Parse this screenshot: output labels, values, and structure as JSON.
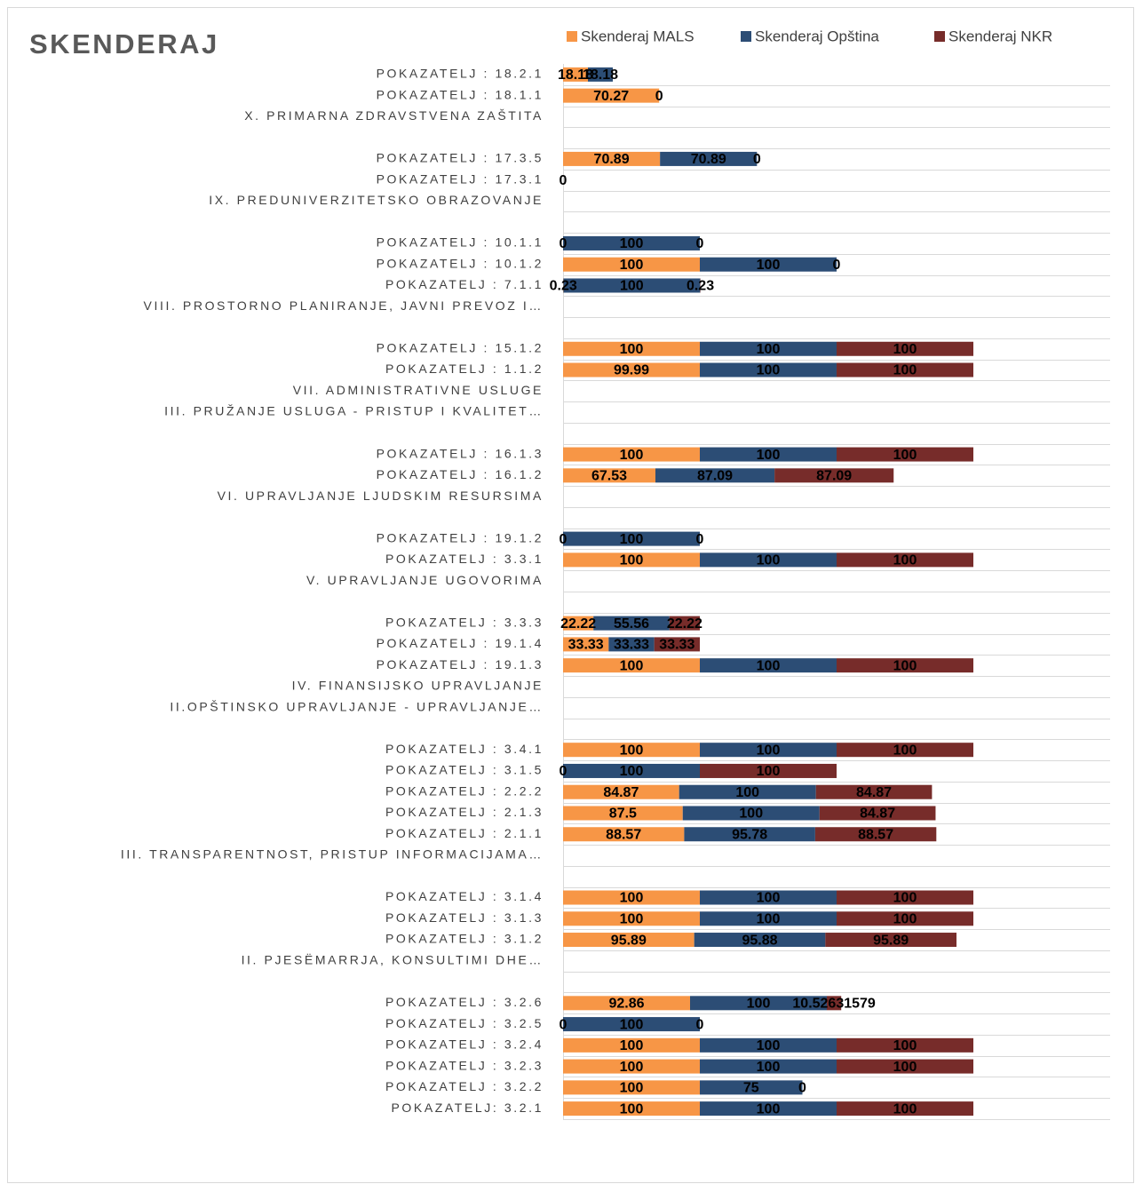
{
  "chart_data": {
    "type": "stacked_barh",
    "title": "SKENDERAJ",
    "categories": [
      "POKAZATELJ : 18.2.1",
      "POKAZATELJ : 18.1.1",
      "X. PRIMARNA ZDRAVSTVENA ZAŠTITA",
      null,
      "POKAZATELJ : 17.3.5",
      "POKAZATELJ : 17.3.1",
      "IX. PREDUNIVERZITETSKO OBRAZOVANJE",
      null,
      "POKAZATELJ : 10.1.1",
      "POKAZATELJ : 10.1.2",
      "POKAZATELJ : 7.1.1",
      "VIII. PROSTORNO PLANIRANJE, JAVNI PREVOZ I…",
      null,
      "POKAZATELJ : 15.1.2",
      "POKAZATELJ : 1.1.2",
      "VII. ADMINISTRATIVNE USLUGE",
      "III. PRUŽANJE USLUGA - PRISTUP I KVALITET…",
      null,
      "POKAZATELJ : 16.1.3",
      "POKAZATELJ : 16.1.2",
      "VI. UPRAVLJANJE LJUDSKIM RESURSIMA",
      null,
      "POKAZATELJ : 19.1.2",
      "POKAZATELJ : 3.3.1",
      "V. UPRAVLJANJE UGOVORIMA",
      null,
      "POKAZATELJ : 3.3.3",
      "POKAZATELJ : 19.1.4",
      "POKAZATELJ : 19.1.3",
      "IV. FINANSIJSKO UPRAVLJANJE",
      "II.OPŠTINSKO UPRAVLJANJE - UPRAVLJANJE…",
      null,
      "POKAZATELJ : 3.4.1",
      "POKAZATELJ : 3.1.5",
      "POKAZATELJ : 2.2.2",
      "POKAZATELJ : 2.1.3",
      "POKAZATELJ : 2.1.1",
      "III. TRANSPARENTNOST, PRISTUP INFORMACIJAMA…",
      null,
      "POKAZATELJ : 3.1.4",
      "POKAZATELJ : 3.1.3",
      "POKAZATELJ : 3.1.2",
      "II. PJESËMARRJA, KONSULTIMI DHE…",
      null,
      "POKAZATELJ : 3.2.6",
      "POKAZATELJ : 3.2.5",
      "POKAZATELJ : 3.2.4",
      "POKAZATELJ : 3.2.3",
      "POKAZATELJ : 3.2.2",
      "POKAZATELJ: 3.2.1"
    ],
    "series": [
      {
        "name": "Skenderaj MALS",
        "color": "#f79646",
        "values": [
          18.18,
          70.27,
          null,
          null,
          70.89,
          0,
          null,
          null,
          0,
          100,
          0.23,
          null,
          null,
          100,
          99.99,
          null,
          null,
          null,
          100,
          67.53,
          null,
          null,
          0,
          100,
          null,
          null,
          22.22,
          33.33,
          100,
          null,
          null,
          null,
          100,
          0,
          84.87,
          87.5,
          88.57,
          null,
          null,
          100,
          100,
          95.89,
          null,
          null,
          92.86,
          0,
          100,
          100,
          100,
          100
        ]
      },
      {
        "name": "Skenderaj Opština",
        "color": "#2c4d75",
        "values": [
          18.18,
          0,
          null,
          null,
          70.89,
          null,
          null,
          null,
          100,
          100,
          100,
          null,
          null,
          100,
          100,
          null,
          null,
          null,
          100,
          87.09,
          null,
          null,
          100,
          100,
          null,
          null,
          55.56,
          33.33,
          100,
          null,
          null,
          null,
          100,
          100,
          100,
          100,
          95.78,
          null,
          null,
          100,
          100,
          95.88,
          null,
          null,
          100,
          100,
          100,
          100,
          75,
          100
        ]
      },
      {
        "name": "Skenderaj NKR",
        "color": "#772c2a",
        "values": [
          null,
          null,
          null,
          null,
          0,
          null,
          null,
          null,
          0,
          0,
          0.23,
          null,
          null,
          100,
          100,
          null,
          null,
          null,
          100,
          87.09,
          null,
          null,
          0,
          100,
          null,
          null,
          22.22,
          33.33,
          100,
          null,
          null,
          null,
          100,
          100,
          84.87,
          84.87,
          88.57,
          null,
          null,
          100,
          100,
          95.89,
          null,
          null,
          10.52631579,
          0,
          100,
          100,
          0,
          100
        ]
      }
    ],
    "xlim": [
      0,
      400
    ]
  }
}
